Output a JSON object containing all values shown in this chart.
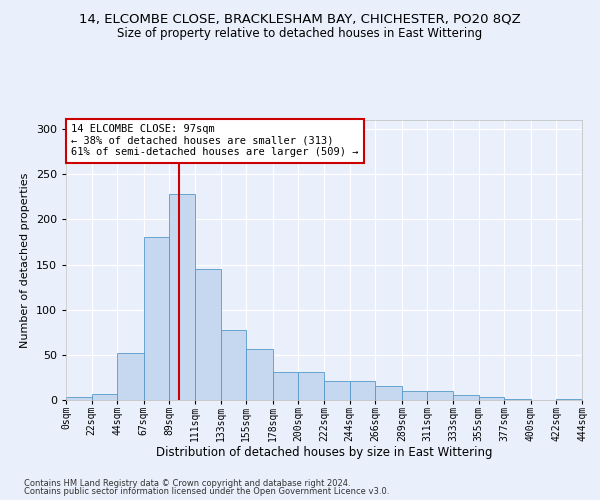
{
  "title": "14, ELCOMBE CLOSE, BRACKLESHAM BAY, CHICHESTER, PO20 8QZ",
  "subtitle": "Size of property relative to detached houses in East Wittering",
  "xlabel": "Distribution of detached houses by size in East Wittering",
  "ylabel": "Number of detached properties",
  "footnote1": "Contains HM Land Registry data © Crown copyright and database right 2024.",
  "footnote2": "Contains public sector information licensed under the Open Government Licence v3.0.",
  "annotation_line1": "14 ELCOMBE CLOSE: 97sqm",
  "annotation_line2": "← 38% of detached houses are smaller (313)",
  "annotation_line3": "61% of semi-detached houses are larger (509) →",
  "property_size": 97,
  "bin_edges": [
    0,
    22,
    44,
    67,
    89,
    111,
    133,
    155,
    178,
    200,
    222,
    244,
    266,
    289,
    311,
    333,
    355,
    377,
    400,
    422,
    444
  ],
  "bar_heights": [
    3,
    7,
    52,
    180,
    228,
    145,
    77,
    57,
    31,
    31,
    21,
    21,
    16,
    10,
    10,
    6,
    3,
    1,
    0,
    1
  ],
  "bar_color": "#c5d8f0",
  "bar_edge_color": "#5599cc",
  "vline_color": "#cc0000",
  "vline_x": 97,
  "ylim": [
    0,
    310
  ],
  "yticks": [
    0,
    50,
    100,
    150,
    200,
    250,
    300
  ],
  "background_color": "#eaf0fb",
  "axes_background": "#eaf0fb",
  "grid_color": "#ffffff",
  "annotation_box_color": "#ffffff",
  "annotation_box_edge": "#cc0000",
  "title_fontsize": 9.5,
  "subtitle_fontsize": 8.5,
  "xlabel_fontsize": 8.5,
  "ylabel_fontsize": 8,
  "tick_label_size": 7,
  "footnote_fontsize": 6,
  "annotation_fontsize": 7.5
}
